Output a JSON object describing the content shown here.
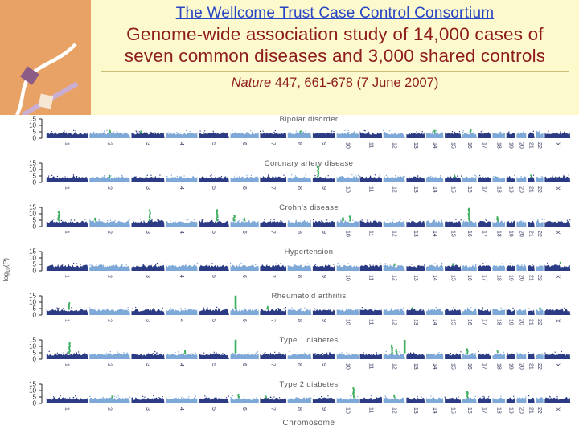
{
  "header": {
    "title_link": "The Wellcome Trust Case Control Consortium",
    "subtitle_line1": "Genome-wide association study of 14,000 cases of",
    "subtitle_line2": "seven common diseases and 3,000 shared controls",
    "citation_journal": "Nature",
    "citation_rest": " 447, 661-678 (7 June 2007)",
    "colors": {
      "link_blue": "#2845c4",
      "dark_red": "#8e1c1c",
      "panel_yellow": "#fcf9cd",
      "corner_orange": "#e9a266",
      "rule_tan": "#cdbb79"
    }
  },
  "chart_data": {
    "type": "scatter",
    "variant": "manhattan-multipanel",
    "xlabel": "Chromosome",
    "ylabel": "-log10(P)",
    "ylim": [
      0,
      15
    ],
    "yticks": [
      0,
      5,
      10,
      15
    ],
    "grid": false,
    "baseline_band_range": [
      0,
      5
    ],
    "chromosomes": [
      "1",
      "2",
      "3",
      "4",
      "5",
      "6",
      "7",
      "8",
      "9",
      "10",
      "11",
      "12",
      "13",
      "14",
      "15",
      "16",
      "17",
      "18",
      "19",
      "20",
      "21",
      "22",
      "X"
    ],
    "chromosome_weights": [
      248,
      242,
      198,
      190,
      182,
      171,
      159,
      145,
      138,
      134,
      135,
      133,
      114,
      107,
      102,
      90,
      83,
      80,
      59,
      64,
      47,
      51,
      155
    ],
    "panels": [
      {
        "title": "Bipolar disorder",
        "hits": [
          {
            "chr": "2",
            "offset": 0.5,
            "peak": 6.5
          },
          {
            "chr": "3",
            "offset": 0.3,
            "peak": 6
          },
          {
            "chr": "8",
            "offset": 0.55,
            "peak": 6
          },
          {
            "chr": "14",
            "offset": 0.5,
            "peak": 6.5
          },
          {
            "chr": "16",
            "offset": 0.55,
            "peak": 7
          }
        ]
      },
      {
        "title": "Coronary artery disease",
        "hits": [
          {
            "chr": "2",
            "offset": 0.5,
            "peak": 5.8,
            "style": "dot"
          },
          {
            "chr": "9",
            "offset": 0.25,
            "peak": 13.5
          },
          {
            "chr": "15",
            "offset": 0.6,
            "peak": 6,
            "style": "dot"
          },
          {
            "chr": "21",
            "offset": 0.5,
            "peak": 6,
            "style": "dot"
          }
        ]
      },
      {
        "title": "Crohn's disease",
        "hits": [
          {
            "chr": "1",
            "offset": 0.3,
            "peak": 12.5
          },
          {
            "chr": "2",
            "offset": 0.15,
            "peak": 7
          },
          {
            "chr": "3",
            "offset": 0.55,
            "peak": 13.5
          },
          {
            "chr": "5",
            "offset": 0.6,
            "peak": 13.5
          },
          {
            "chr": "6",
            "offset": 0.15,
            "peak": 9
          },
          {
            "chr": "6",
            "offset": 0.5,
            "peak": 7
          },
          {
            "chr": "10",
            "offset": 0.3,
            "peak": 7.5
          },
          {
            "chr": "10",
            "offset": 0.6,
            "peak": 8.5
          },
          {
            "chr": "16",
            "offset": 0.45,
            "peak": 14.5
          },
          {
            "chr": "18",
            "offset": 0.4,
            "peak": 8
          }
        ]
      },
      {
        "title": "Hypertension",
        "hits": [
          {
            "chr": "12",
            "offset": 0.5,
            "peak": 5.8,
            "style": "dot"
          },
          {
            "chr": "15",
            "offset": 0.5,
            "peak": 6,
            "style": "dot"
          },
          {
            "chr": "X",
            "offset": 0.6,
            "peak": 7,
            "style": "dot"
          }
        ]
      },
      {
        "title": "Rheumatoid arthritis",
        "hits": [
          {
            "chr": "1",
            "offset": 0.55,
            "peak": 10
          },
          {
            "chr": "6",
            "offset": 0.2,
            "peak": 15.2
          },
          {
            "chr": "7",
            "offset": 0.3,
            "peak": 7
          },
          {
            "chr": "13",
            "offset": 0.35,
            "peak": 6,
            "style": "dot"
          },
          {
            "chr": "22",
            "offset": 0.5,
            "peak": 5.8,
            "style": "dot"
          }
        ]
      },
      {
        "title": "Type 1 diabetes",
        "hits": [
          {
            "chr": "1",
            "offset": 0.55,
            "peak": 13.5
          },
          {
            "chr": "4",
            "offset": 0.6,
            "peak": 7
          },
          {
            "chr": "6",
            "offset": 0.2,
            "peak": 15.2
          },
          {
            "chr": "12",
            "offset": 0.4,
            "peak": 11.5
          },
          {
            "chr": "12",
            "offset": 0.6,
            "peak": 8
          },
          {
            "chr": "12",
            "offset": 0.95,
            "peak": 15,
            "style": "dot"
          },
          {
            "chr": "16",
            "offset": 0.35,
            "peak": 8.5
          },
          {
            "chr": "18",
            "offset": 0.4,
            "peak": 7,
            "style": "dot"
          }
        ]
      },
      {
        "title": "Type 2 diabetes",
        "hits": [
          {
            "chr": "2",
            "offset": 0.55,
            "peak": 6,
            "style": "dot"
          },
          {
            "chr": "6",
            "offset": 0.3,
            "peak": 7.5
          },
          {
            "chr": "7",
            "offset": 0.25,
            "peak": 6,
            "style": "dot"
          },
          {
            "chr": "10",
            "offset": 0.75,
            "peak": 12.5
          },
          {
            "chr": "12",
            "offset": 0.5,
            "peak": 7
          },
          {
            "chr": "16",
            "offset": 0.35,
            "peak": 10
          }
        ]
      }
    ],
    "colors": {
      "chromosome_odd": "#2b3c85",
      "chromosome_even": "#7da8d8",
      "hit": "#3fae5f",
      "axis": "#2a2a2a",
      "tick_label": "#222222",
      "panel_title": "#595959",
      "chromosome_label": "#33395c",
      "axis_title": "#595959"
    }
  }
}
